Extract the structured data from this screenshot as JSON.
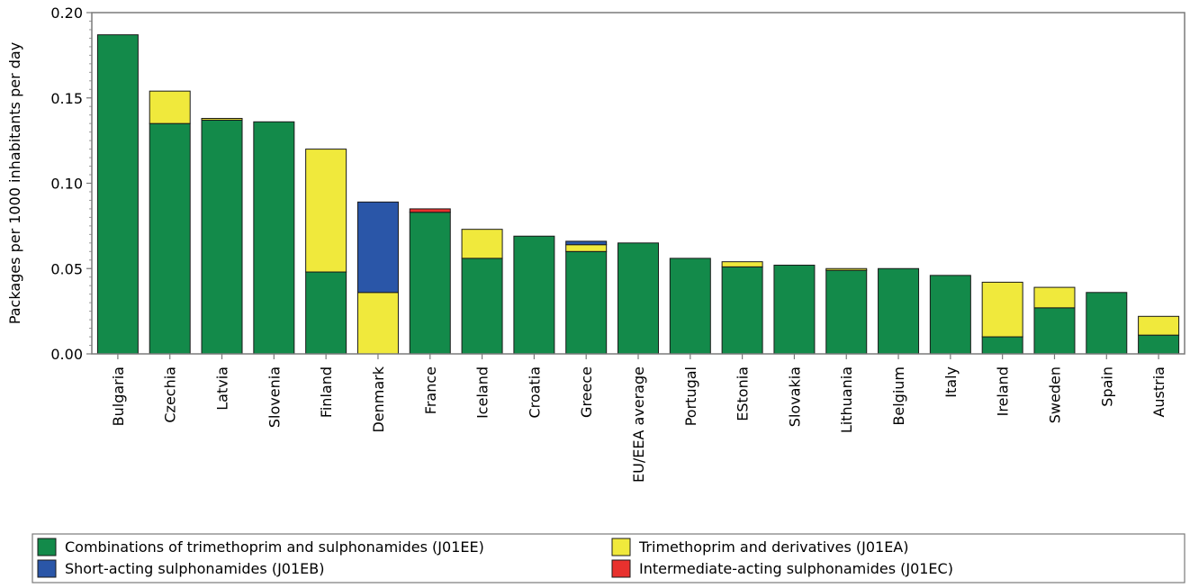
{
  "chart_data": {
    "type": "bar",
    "stacked": true,
    "title": "",
    "xlabel": "",
    "ylabel": "Packages per 1000 inhabitants per day",
    "ylim": [
      0,
      0.2
    ],
    "yticks": [
      "0.00",
      "0.05",
      "0.10",
      "0.15",
      "0.20"
    ],
    "grid": false,
    "legend_position": "bottom",
    "categories": [
      "Bulgaria",
      "Czechia",
      "Latvia",
      "Slovenia",
      "Finland",
      "Denmark",
      "France",
      "Iceland",
      "Croatia",
      "Greece",
      "EU/EEA average",
      "Portugal",
      "EStonia",
      "Slovakia",
      "Lithuania",
      "Belgium",
      "Italy",
      "Ireland",
      "Sweden",
      "Spain",
      "Austria"
    ],
    "series": [
      {
        "name": "Combinations of trimethoprim and sulphonamides (J01EE)",
        "color": "#138a4a",
        "values": [
          0.187,
          0.135,
          0.137,
          0.136,
          0.048,
          0.0,
          0.083,
          0.056,
          0.069,
          0.06,
          0.065,
          0.056,
          0.051,
          0.052,
          0.049,
          0.05,
          0.046,
          0.01,
          0.027,
          0.036,
          0.011
        ]
      },
      {
        "name": "Trimethoprim and derivatives (J01EA)",
        "color": "#f0e93c",
        "values": [
          0.0,
          0.019,
          0.001,
          0.0,
          0.072,
          0.036,
          0.0,
          0.017,
          0.0,
          0.004,
          0.0,
          0.0,
          0.003,
          0.0,
          0.001,
          0.0,
          0.0,
          0.032,
          0.012,
          0.0,
          0.011
        ]
      },
      {
        "name": "Short-acting sulphonamides (J01EB)",
        "color": "#2a56a8",
        "values": [
          0.0,
          0.0,
          0.0,
          0.0,
          0.0,
          0.053,
          0.0,
          0.0,
          0.0,
          0.002,
          0.0,
          0.0,
          0.0,
          0.0,
          0.0,
          0.0,
          0.0,
          0.0,
          0.0,
          0.0,
          0.0
        ]
      },
      {
        "name": "Intermediate-acting sulphonamides (J01EC)",
        "color": "#e8312e",
        "values": [
          0.0,
          0.0,
          0.0,
          0.0,
          0.0,
          0.0,
          0.002,
          0.0,
          0.0,
          0.0,
          0.0,
          0.0,
          0.0,
          0.0,
          0.0,
          0.0,
          0.0,
          0.0,
          0.0,
          0.0,
          0.0
        ]
      }
    ],
    "legend_order": [
      0,
      1,
      2,
      3
    ]
  }
}
